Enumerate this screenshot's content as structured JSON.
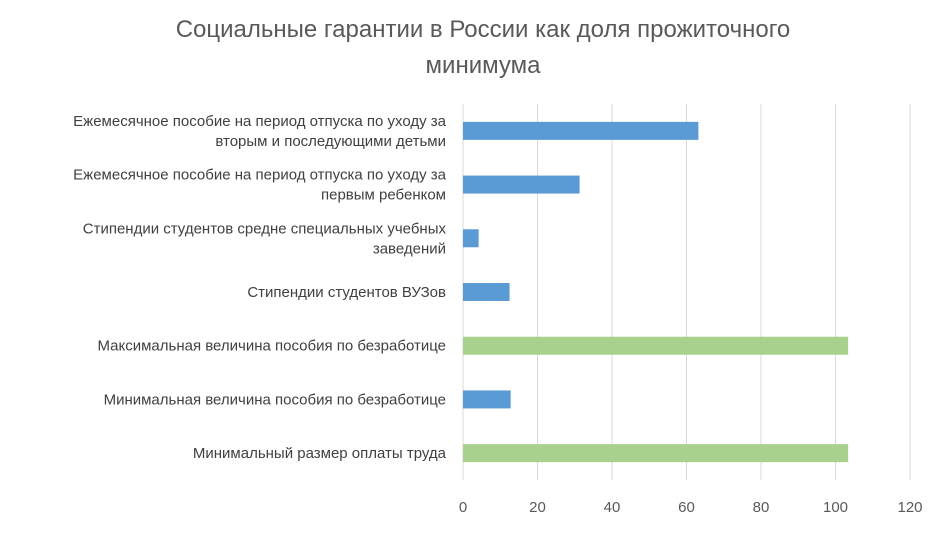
{
  "chart_data": {
    "type": "bar",
    "orientation": "horizontal",
    "title_lines": [
      "Социальные гарантии в России как доля прожиточного",
      "минимума"
    ],
    "categories": [
      [
        "Ежемесячное пособие на период отпуска по уходу за",
        "вторым и последующими детьми"
      ],
      [
        "Ежемесячное пособие на период отпуска по уходу за",
        "первым ребенком"
      ],
      [
        "Стипендии студентов средне специальных учебных",
        "заведений"
      ],
      [
        "Стипендии студентов ВУЗов"
      ],
      [
        "Максимальная величина пособия по безработице"
      ],
      [
        "Минимальная величина пособия по безработице"
      ],
      [
        "Минимальный размер оплаты труда"
      ]
    ],
    "values": [
      63.2,
      31.3,
      4.2,
      12.5,
      103.4,
      12.8,
      103.4
    ],
    "bar_colors": [
      "#5b9bd5",
      "#5b9bd5",
      "#5b9bd5",
      "#5b9bd5",
      "#a9d18e",
      "#5b9bd5",
      "#a9d18e"
    ],
    "xlim": [
      0,
      120
    ],
    "xticks": [
      "0",
      "20",
      "40",
      "60",
      "80",
      "100",
      "120"
    ],
    "grid": true,
    "legend": "none"
  },
  "colors": {
    "text": "#595959",
    "gridline": "#d9d9d9"
  }
}
